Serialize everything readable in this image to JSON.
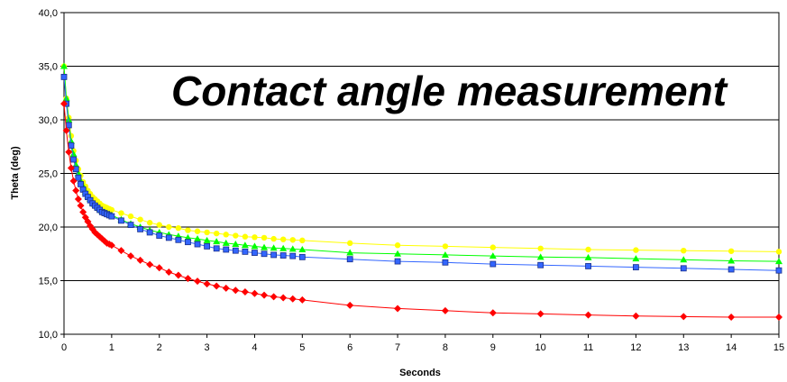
{
  "chart_data": {
    "type": "line",
    "title": "Contact angle measurement",
    "xlabel": "Seconds",
    "ylabel": "Theta (deg)",
    "xlim": [
      0,
      15
    ],
    "ylim": [
      10,
      40
    ],
    "x_ticks": [
      "0",
      "1",
      "2",
      "3",
      "4",
      "5",
      "6",
      "7",
      "8",
      "9",
      "10",
      "11",
      "12",
      "13",
      "14",
      "15"
    ],
    "y_ticks": [
      "10,0",
      "15,0",
      "20,0",
      "25,0",
      "30,0",
      "35,0",
      "40,0"
    ],
    "grid": "horizontal",
    "legend": "none",
    "series": [
      {
        "color": "#ffff00",
        "marker": "circle",
        "x": [
          0,
          0.05,
          0.1,
          0.15,
          0.2,
          0.25,
          0.3,
          0.35,
          0.4,
          0.45,
          0.5,
          0.55,
          0.6,
          0.65,
          0.7,
          0.75,
          0.8,
          0.85,
          0.9,
          0.95,
          1,
          1.2,
          1.4,
          1.6,
          1.8,
          2,
          2.2,
          2.4,
          2.6,
          2.8,
          3,
          3.2,
          3.4,
          3.6,
          3.8,
          4,
          4.2,
          4.4,
          4.6,
          4.8,
          5,
          6,
          7,
          8,
          9,
          10,
          11,
          12,
          13,
          14,
          15
        ],
        "y": [
          35,
          32,
          30.2,
          28.5,
          27.1,
          26.2,
          25.4,
          24.8,
          24.2,
          23.8,
          23.4,
          23.1,
          22.8,
          22.6,
          22.4,
          22.2,
          22,
          21.9,
          21.8,
          21.7,
          21.6,
          21.3,
          21,
          20.7,
          20.4,
          20.2,
          20,
          19.9,
          19.7,
          19.6,
          19.5,
          19.4,
          19.3,
          19.2,
          19.1,
          19.05,
          19,
          18.9,
          18.85,
          18.8,
          18.75,
          18.5,
          18.3,
          18.2,
          18.1,
          18,
          17.9,
          17.85,
          17.8,
          17.75,
          17.7
        ]
      },
      {
        "color": "#00ff00",
        "marker": "triangle",
        "x": [
          0,
          0.05,
          0.1,
          0.15,
          0.2,
          0.25,
          0.3,
          0.35,
          0.4,
          0.45,
          0.5,
          0.55,
          0.6,
          0.65,
          0.7,
          0.75,
          0.8,
          0.85,
          0.9,
          0.95,
          1,
          1.2,
          1.4,
          1.6,
          1.8,
          2,
          2.2,
          2.4,
          2.6,
          2.8,
          3,
          3.2,
          3.4,
          3.6,
          3.8,
          4,
          4.2,
          4.4,
          4.6,
          4.8,
          5,
          6,
          7,
          8,
          9,
          10,
          11,
          12,
          13,
          14,
          15
        ],
        "y": [
          35,
          32,
          30,
          28,
          26.8,
          25.8,
          25,
          24.3,
          23.8,
          23.3,
          22.9,
          22.6,
          22.3,
          22.1,
          21.9,
          21.7,
          21.5,
          21.4,
          21.3,
          21.2,
          21.1,
          20.7,
          20.3,
          20,
          19.7,
          19.5,
          19.3,
          19.15,
          19,
          18.9,
          18.75,
          18.65,
          18.5,
          18.4,
          18.3,
          18.2,
          18.1,
          18.05,
          18,
          17.95,
          17.9,
          17.6,
          17.5,
          17.4,
          17.3,
          17.2,
          17.15,
          17.05,
          16.95,
          16.85,
          16.8
        ]
      },
      {
        "color": "#3366ff",
        "marker": "square",
        "x": [
          0,
          0.05,
          0.1,
          0.15,
          0.2,
          0.25,
          0.3,
          0.35,
          0.4,
          0.45,
          0.5,
          0.55,
          0.6,
          0.65,
          0.7,
          0.75,
          0.8,
          0.85,
          0.9,
          0.95,
          1,
          1.2,
          1.4,
          1.6,
          1.8,
          2,
          2.2,
          2.4,
          2.6,
          2.8,
          3,
          3.2,
          3.4,
          3.6,
          3.8,
          4,
          4.2,
          4.4,
          4.6,
          4.8,
          5,
          6,
          7,
          8,
          9,
          10,
          11,
          12,
          13,
          14,
          15
        ],
        "y": [
          34,
          31.5,
          29.5,
          27.6,
          26.3,
          25.4,
          24.6,
          24,
          23.5,
          23.1,
          22.8,
          22.5,
          22.2,
          22,
          21.8,
          21.6,
          21.4,
          21.3,
          21.2,
          21.1,
          21,
          20.6,
          20.2,
          19.8,
          19.5,
          19.2,
          19,
          18.8,
          18.6,
          18.4,
          18.2,
          18,
          17.9,
          17.8,
          17.7,
          17.6,
          17.5,
          17.4,
          17.35,
          17.3,
          17.2,
          17,
          16.8,
          16.7,
          16.55,
          16.45,
          16.35,
          16.25,
          16.15,
          16.05,
          15.95
        ]
      },
      {
        "color": "#ff0000",
        "marker": "diamond",
        "x": [
          0,
          0.05,
          0.1,
          0.15,
          0.2,
          0.25,
          0.3,
          0.35,
          0.4,
          0.45,
          0.5,
          0.55,
          0.6,
          0.65,
          0.7,
          0.75,
          0.8,
          0.85,
          0.9,
          0.95,
          1,
          1.2,
          1.4,
          1.6,
          1.8,
          2,
          2.2,
          2.4,
          2.6,
          2.8,
          3,
          3.2,
          3.4,
          3.6,
          3.8,
          4,
          4.2,
          4.4,
          4.6,
          4.8,
          5,
          6,
          7,
          8,
          9,
          10,
          11,
          12,
          13,
          14,
          15
        ],
        "y": [
          31.5,
          29,
          27,
          25.5,
          24.3,
          23.4,
          22.6,
          22,
          21.4,
          20.9,
          20.5,
          20.1,
          19.8,
          19.5,
          19.3,
          19.1,
          18.9,
          18.7,
          18.5,
          18.4,
          18.3,
          17.8,
          17.3,
          16.9,
          16.5,
          16.2,
          15.8,
          15.5,
          15.2,
          14.95,
          14.7,
          14.5,
          14.3,
          14.1,
          13.95,
          13.8,
          13.65,
          13.5,
          13.4,
          13.3,
          13.2,
          12.7,
          12.4,
          12.2,
          12,
          11.9,
          11.8,
          11.7,
          11.65,
          11.6,
          11.6
        ]
      }
    ]
  }
}
